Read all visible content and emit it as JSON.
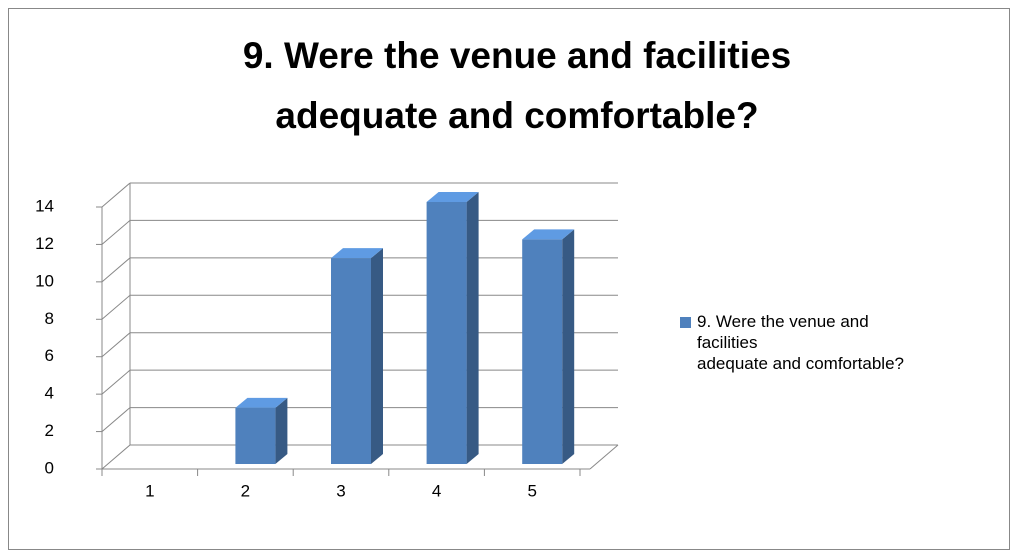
{
  "chart_data": {
    "type": "bar3d",
    "title": "9. Were the venue and facilities\nadequate and comfortable?",
    "categories": [
      "1",
      "2",
      "3",
      "4",
      "5"
    ],
    "series": [
      {
        "name": "9. Were the venue and facilities\nadequate and comfortable?",
        "color": "#4f81bd",
        "values": [
          0,
          3,
          11,
          14,
          12
        ]
      }
    ],
    "ylim": [
      0,
      14
    ],
    "yticks": [
      0,
      2,
      4,
      6,
      8,
      10,
      12,
      14
    ],
    "grid": true,
    "legend": "right"
  }
}
